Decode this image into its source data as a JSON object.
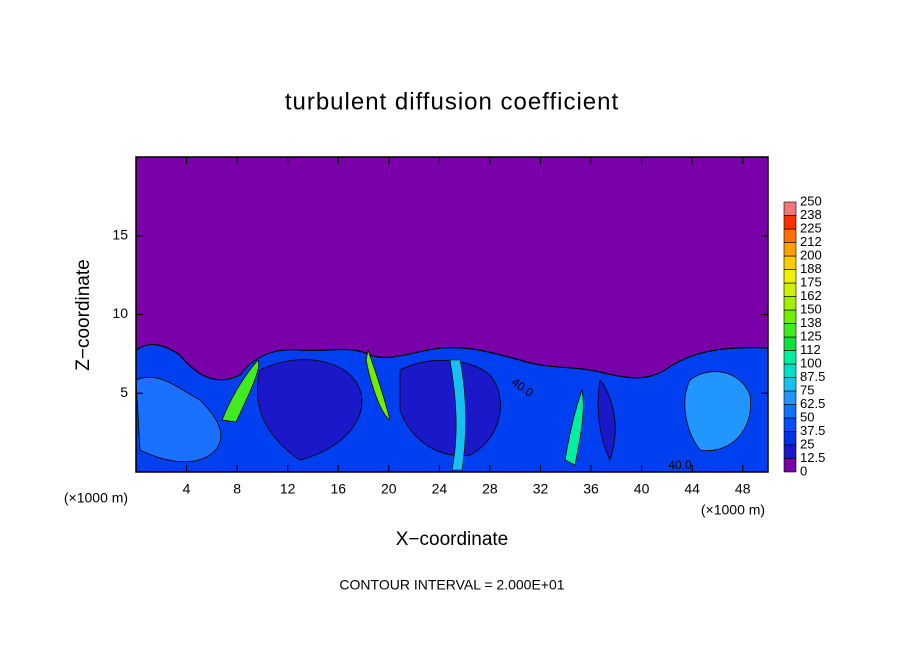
{
  "chart_data": {
    "type": "contour",
    "title": "turbulent diffusion coefficient",
    "x_label": "X−coordinate",
    "y_label": "Z−coordinate",
    "x_unit": "(×1000 m)",
    "y_unit": "(×1000 m)",
    "xlim": [
      0,
      50
    ],
    "xticks": [
      4,
      8,
      12,
      16,
      20,
      24,
      28,
      32,
      36,
      40,
      44,
      48
    ],
    "ylim": [
      0,
      20
    ],
    "yticks": [
      5,
      10,
      15
    ],
    "colorbar": {
      "levels": [
        0,
        12.5,
        25,
        37.5,
        50,
        62.5,
        75,
        87.5,
        100,
        112,
        125,
        138,
        150,
        162,
        175,
        188,
        200,
        212,
        225,
        238,
        250
      ],
      "colors": [
        "#7a00aa",
        "#1a18c8",
        "#0030e8",
        "#0050ff",
        "#1070ff",
        "#2296ff",
        "#18c0f0",
        "#00e0c8",
        "#00f0a0",
        "#10e040",
        "#40ec20",
        "#70f000",
        "#a0f000",
        "#d0f000",
        "#f0f000",
        "#ffcc00",
        "#ffa000",
        "#ff7000",
        "#ff3000",
        "#f07878"
      ]
    },
    "contour_labels": [
      "40.0",
      "40.0"
    ],
    "footer": "CONTOUR INTERVAL = 2.000E+01"
  }
}
